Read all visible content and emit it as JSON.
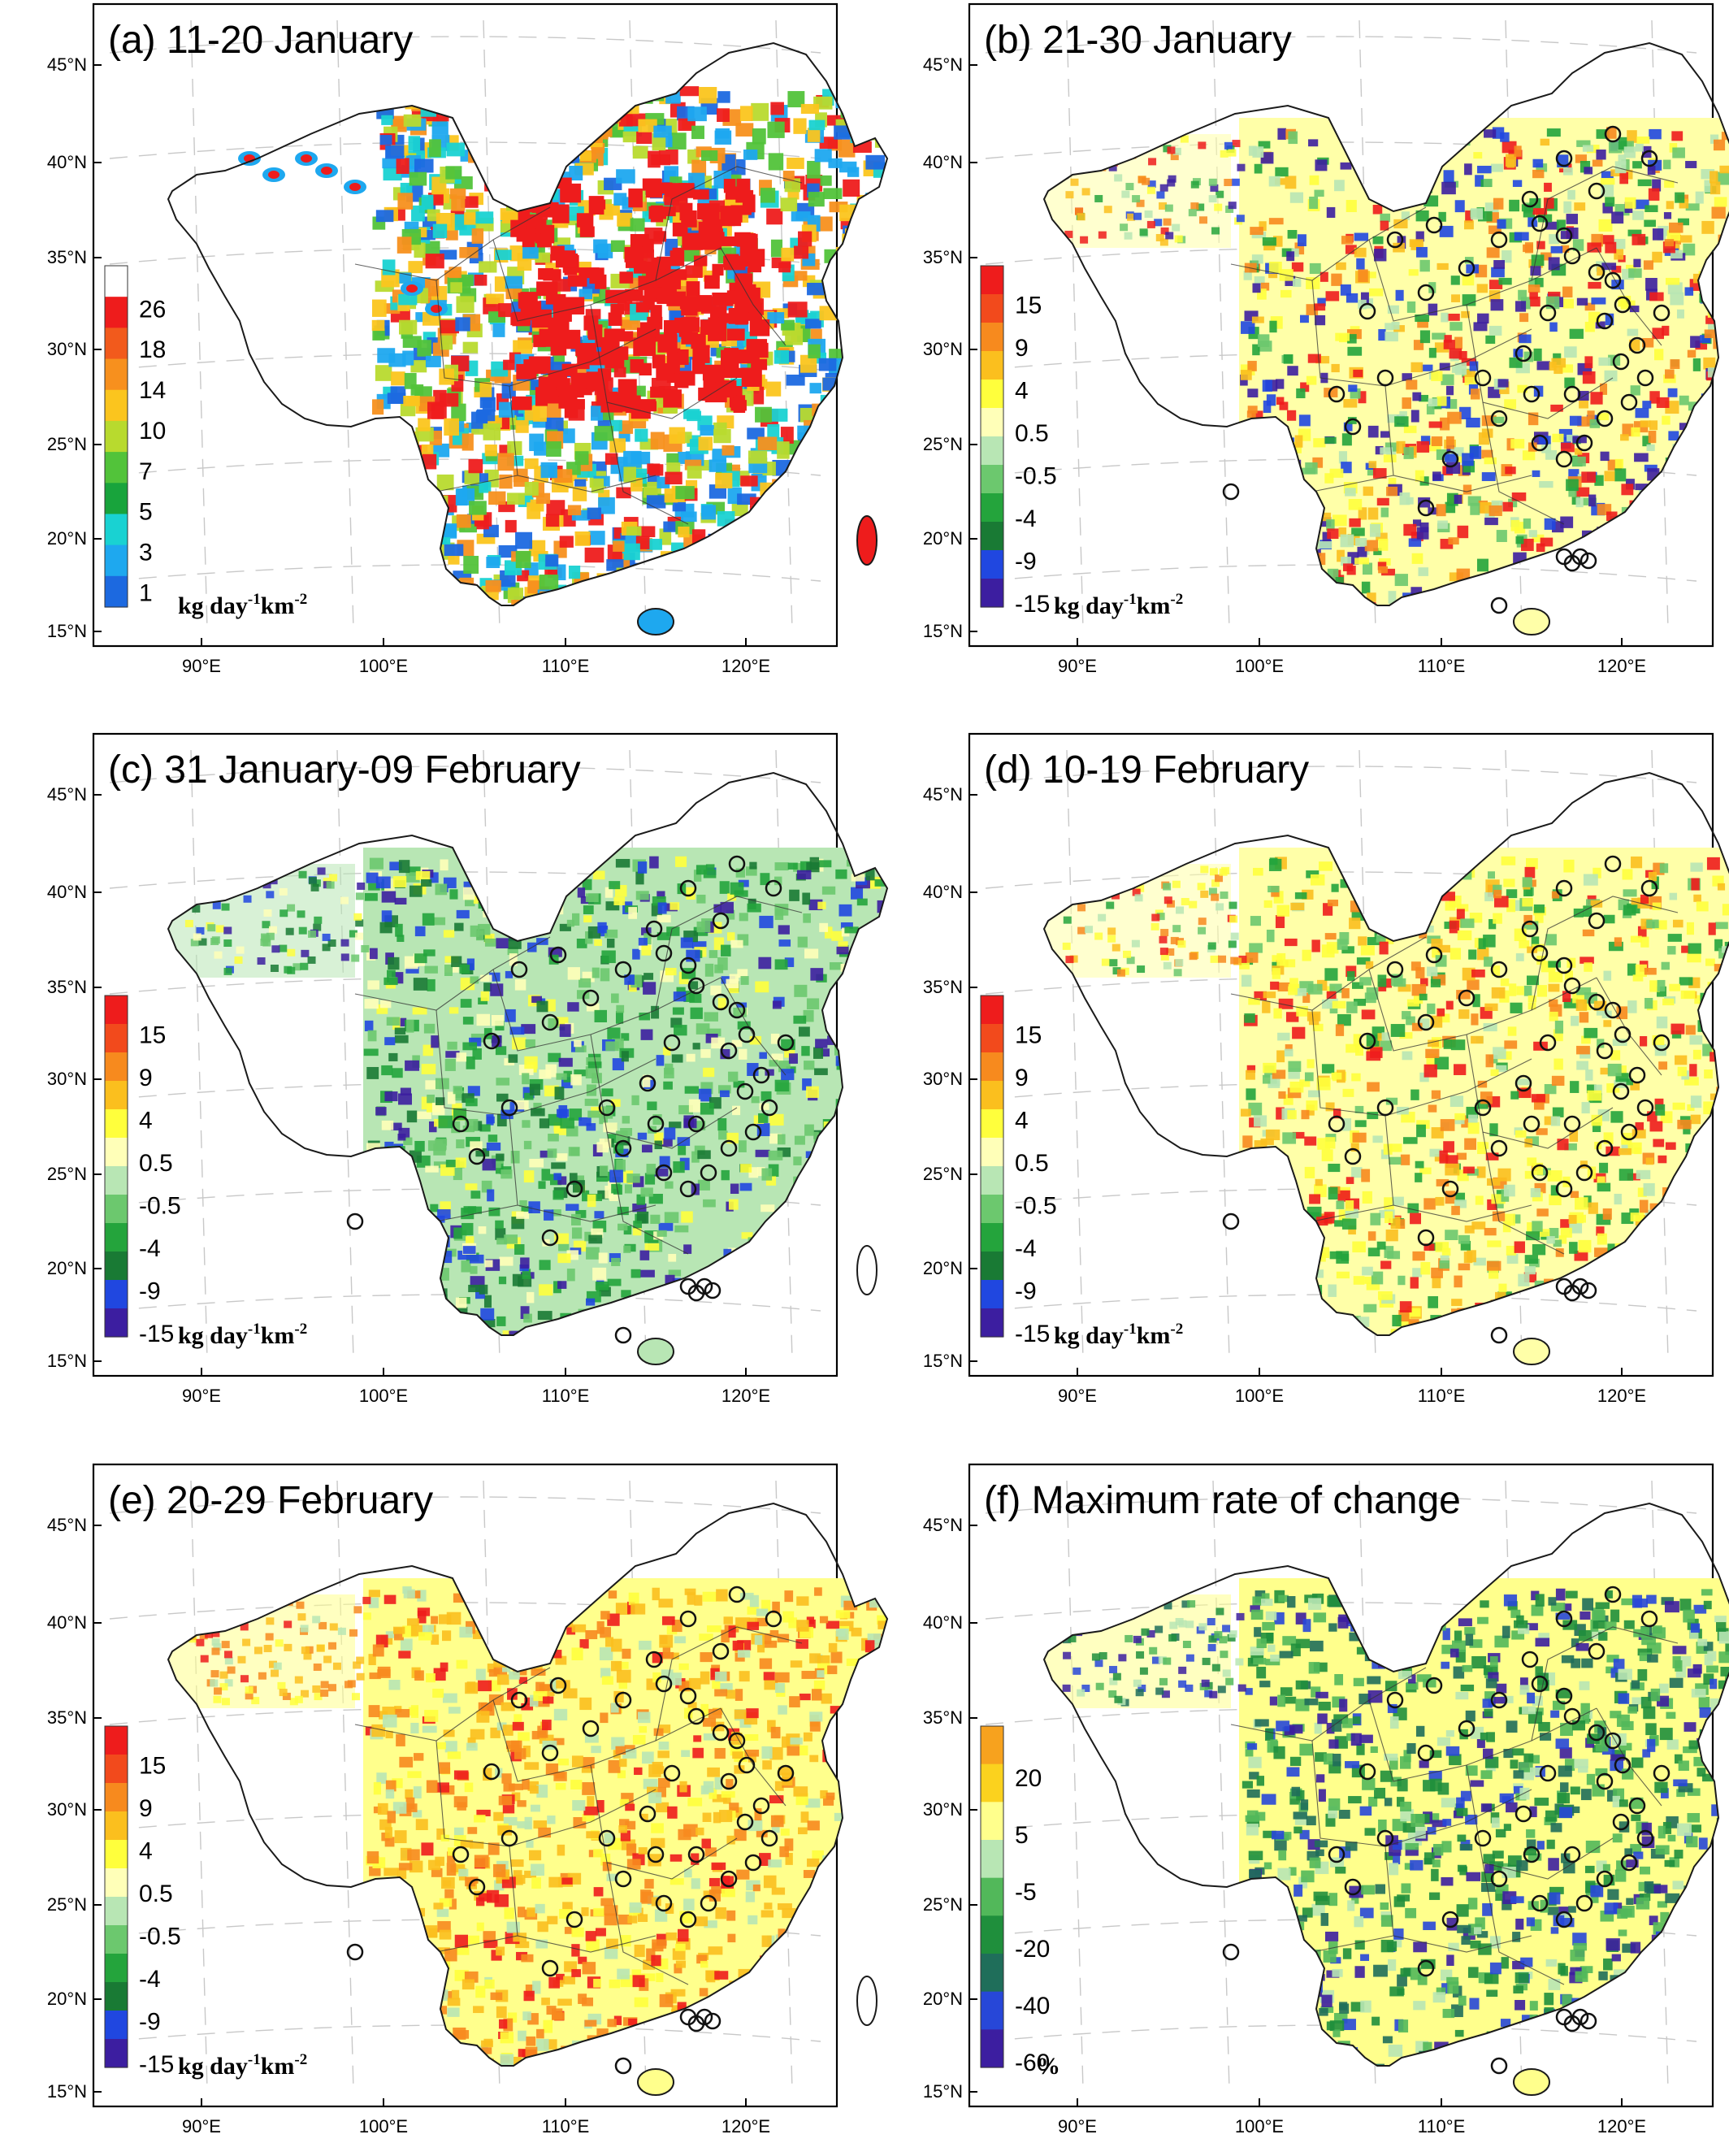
{
  "panels": [
    {
      "title": "(a) 11-20 January",
      "colorbar": {
        "labels": [
          "26",
          "18",
          "14",
          "10",
          "7",
          "5",
          "3",
          "1"
        ],
        "colors": [
          "#ffffff",
          "#ee1c1c",
          "#f25a1c",
          "#f7901e",
          "#fbc51e",
          "#b8da2e",
          "#52c33a",
          "#18a43c",
          "#19d2d2",
          "#1ea8ef",
          "#1c69e0"
        ]
      },
      "unit": {
        "main": "kg day",
        "sup1": "-1",
        "mid": "km",
        "sup2": "-2"
      },
      "style": "emission"
    },
    {
      "title": "(b) 21-30 January",
      "colorbar": {
        "labels": [
          "15",
          "9",
          "4",
          "0.5",
          "-0.5",
          "-4",
          "-9",
          "-15"
        ],
        "colors": [
          "#ee1c1c",
          "#f24a1c",
          "#f78a1e",
          "#fbbf1e",
          "#ffff3c",
          "#ffffb8",
          "#b8e6b4",
          "#6cc86e",
          "#24a43c",
          "#197a34",
          "#2047e0",
          "#3c1ea0"
        ]
      },
      "unit": {
        "main": "kg day",
        "sup1": "-1",
        "mid": "km",
        "sup2": "-2"
      },
      "style": "mixed"
    },
    {
      "title": "(c) 31 January-09 February",
      "colorbar": {
        "labels": [
          "15",
          "9",
          "4",
          "0.5",
          "-0.5",
          "-4",
          "-9",
          "-15"
        ],
        "colors": [
          "#ee1c1c",
          "#f24a1c",
          "#f78a1e",
          "#fbbf1e",
          "#ffff3c",
          "#ffffb8",
          "#b8e6b4",
          "#6cc86e",
          "#24a43c",
          "#197a34",
          "#2047e0",
          "#3c1ea0"
        ]
      },
      "unit": {
        "main": "kg day",
        "sup1": "-1",
        "mid": "km",
        "sup2": "-2"
      },
      "style": "green"
    },
    {
      "title": "(d) 10-19 February",
      "colorbar": {
        "labels": [
          "15",
          "9",
          "4",
          "0.5",
          "-0.5",
          "-4",
          "-9",
          "-15"
        ],
        "colors": [
          "#ee1c1c",
          "#f24a1c",
          "#f78a1e",
          "#fbbf1e",
          "#ffff3c",
          "#ffffb8",
          "#b8e6b4",
          "#6cc86e",
          "#24a43c",
          "#197a34",
          "#2047e0",
          "#3c1ea0"
        ]
      },
      "unit": {
        "main": "kg day",
        "sup1": "-1",
        "mid": "km",
        "sup2": "-2"
      },
      "style": "mixed2"
    },
    {
      "title": "(e) 20-29 February",
      "colorbar": {
        "labels": [
          "15",
          "9",
          "4",
          "0.5",
          "-0.5",
          "-4",
          "-9",
          "-15"
        ],
        "colors": [
          "#ee1c1c",
          "#f24a1c",
          "#f78a1e",
          "#fbbf1e",
          "#ffff3c",
          "#ffffb8",
          "#b8e6b4",
          "#6cc86e",
          "#24a43c",
          "#197a34",
          "#2047e0",
          "#3c1ea0"
        ]
      },
      "unit": {
        "main": "kg day",
        "sup1": "-1",
        "mid": "km",
        "sup2": "-2"
      },
      "style": "warm"
    },
    {
      "title": "(f) Maximum rate of change",
      "colorbar": {
        "labels": [
          "20",
          "5",
          "-5",
          "-20",
          "-40",
          "-60"
        ],
        "colors": [
          "#f7a21e",
          "#fbd21e",
          "#ffff8c",
          "#b8e6b4",
          "#52b85a",
          "#1f8f3c",
          "#1f6e5a",
          "#2747d8",
          "#3c1ea0"
        ]
      },
      "unit": {
        "main": "%",
        "sup1": "",
        "mid": "",
        "sup2": ""
      },
      "style": "rate"
    }
  ],
  "axes": {
    "lat_labels": [
      "45°N",
      "40°N",
      "35°N",
      "30°N",
      "25°N",
      "20°N",
      "15°N"
    ],
    "lon_labels": [
      "90°E",
      "100°E",
      "110°E",
      "120°E"
    ]
  }
}
